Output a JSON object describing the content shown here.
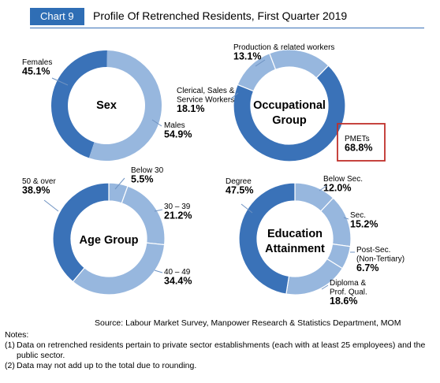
{
  "header": {
    "chart_tag": "Chart 9",
    "title": "Profile Of Retrenched Residents, First Quarter 2019",
    "tag_color": "#2f6eb5"
  },
  "colors": {
    "dark": "#3a72b8",
    "light": "#97b7de",
    "leader": "#6f93c2",
    "highlight_box": "#c0302a"
  },
  "chart_data": [
    {
      "type": "pie",
      "title": "Sex",
      "slices": [
        {
          "label": "Females",
          "value": 45.1,
          "display": "45.1%"
        },
        {
          "label": "Males",
          "value": 54.9,
          "display": "54.9%"
        }
      ]
    },
    {
      "type": "pie",
      "title": "Occupational Group",
      "slices": [
        {
          "label": "Production & related workers",
          "value": 13.1,
          "display": "13.1%"
        },
        {
          "label": "Clerical, Sales & Service Workers",
          "value": 18.1,
          "display": "18.1%"
        },
        {
          "label": "PMETs",
          "value": 68.8,
          "display": "68.8%"
        }
      ]
    },
    {
      "type": "pie",
      "title": "Age Group",
      "slices": [
        {
          "label": "Below 30",
          "value": 5.5,
          "display": "5.5%"
        },
        {
          "label": "30 – 39",
          "value": 21.2,
          "display": "21.2%"
        },
        {
          "label": "40 – 49",
          "value": 34.4,
          "display": "34.4%"
        },
        {
          "label": "50 & over",
          "value": 38.9,
          "display": "38.9%"
        }
      ]
    },
    {
      "type": "pie",
      "title": "Education Attainment",
      "slices": [
        {
          "label": "Below Sec.",
          "value": 12.0,
          "display": "12.0%"
        },
        {
          "label": "Sec.",
          "value": 15.2,
          "display": "15.2%"
        },
        {
          "label": "Post-Sec. (Non-Tertiary)",
          "value": 6.7,
          "display": "6.7%"
        },
        {
          "label": "Diploma & Prof. Qual.",
          "value": 18.6,
          "display": "18.6%"
        },
        {
          "label": "Degree",
          "value": 47.5,
          "display": "47.5%"
        }
      ]
    }
  ],
  "source": "Source: Labour Market Survey, Manpower Research & Statistics Department, MOM",
  "notes": {
    "heading": "Notes:",
    "items": [
      {
        "num": "(1)",
        "text": "Data on retrenched residents pertain to private sector establishments (each with at least 25 employees) and the public sector."
      },
      {
        "num": "(2)",
        "text": "Data may not add up to the total due to rounding."
      }
    ]
  }
}
